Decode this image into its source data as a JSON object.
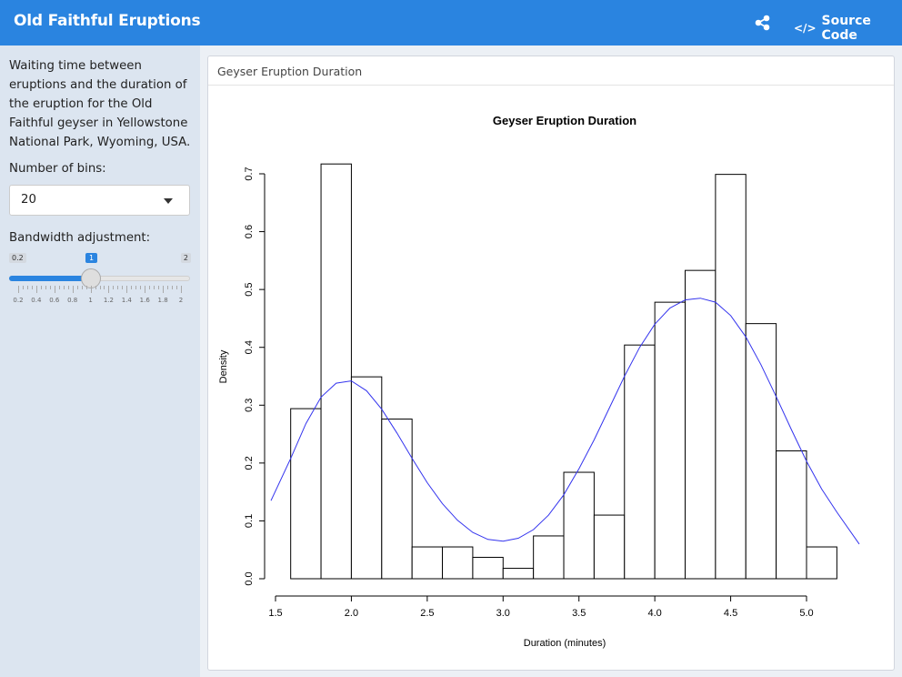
{
  "header": {
    "title": "Old Faithful Eruptions",
    "source_label": "Source Code",
    "code_icon_text": "</>",
    "share_icon": "share-icon",
    "brand_color": "#2a84e0"
  },
  "sidebar": {
    "description": "Waiting time between eruptions and the duration of the eruption for the Old Faithful geyser in Yellowstone National Park, Wyoming, USA.",
    "bins_label": "Number of bins:",
    "bins_value": "20",
    "bandwidth_label": "Bandwidth adjustment:",
    "slider": {
      "min_label": "0.2",
      "max_label": "2",
      "value_label": "1",
      "min": 0.2,
      "max": 2,
      "value": 1,
      "tick_labels": [
        "0.2",
        "0.4",
        "0.6",
        "0.8",
        "1",
        "1.2",
        "1.4",
        "1.6",
        "1.8",
        "2"
      ]
    }
  },
  "main": {
    "box_title": "Geyser Eruption Duration"
  },
  "chart_data": {
    "type": "histogram",
    "title": "Geyser Eruption Duration",
    "xlabel": "Duration (minutes)",
    "ylabel": "Density",
    "xlim": [
      1.5,
      5.3
    ],
    "ylim": [
      0,
      0.7
    ],
    "x_ticks": [
      "1.5",
      "2.0",
      "2.5",
      "3.0",
      "3.5",
      "4.0",
      "4.5",
      "5.0"
    ],
    "y_ticks": [
      "0.0",
      "0.1",
      "0.2",
      "0.3",
      "0.4",
      "0.5",
      "0.6",
      "0.7"
    ],
    "bins": [
      {
        "x0": 1.6,
        "x1": 1.8,
        "density": 0.294
      },
      {
        "x0": 1.8,
        "x1": 2.0,
        "density": 0.717
      },
      {
        "x0": 2.0,
        "x1": 2.2,
        "density": 0.349
      },
      {
        "x0": 2.2,
        "x1": 2.4,
        "density": 0.276
      },
      {
        "x0": 2.4,
        "x1": 2.6,
        "density": 0.055
      },
      {
        "x0": 2.6,
        "x1": 2.8,
        "density": 0.055
      },
      {
        "x0": 2.8,
        "x1": 3.0,
        "density": 0.037
      },
      {
        "x0": 3.0,
        "x1": 3.2,
        "density": 0.018
      },
      {
        "x0": 3.2,
        "x1": 3.4,
        "density": 0.074
      },
      {
        "x0": 3.4,
        "x1": 3.6,
        "density": 0.184
      },
      {
        "x0": 3.6,
        "x1": 3.8,
        "density": 0.11
      },
      {
        "x0": 3.8,
        "x1": 4.0,
        "density": 0.404
      },
      {
        "x0": 4.0,
        "x1": 4.2,
        "density": 0.478
      },
      {
        "x0": 4.2,
        "x1": 4.4,
        "density": 0.533
      },
      {
        "x0": 4.4,
        "x1": 4.6,
        "density": 0.699
      },
      {
        "x0": 4.6,
        "x1": 4.8,
        "density": 0.441
      },
      {
        "x0": 4.8,
        "x1": 5.0,
        "density": 0.221
      },
      {
        "x0": 5.0,
        "x1": 5.2,
        "density": 0.055
      }
    ],
    "density_curve": {
      "color": "#3333ee",
      "x": [
        1.47,
        1.6,
        1.7,
        1.8,
        1.9,
        2.0,
        2.1,
        2.2,
        2.3,
        2.4,
        2.5,
        2.6,
        2.7,
        2.8,
        2.9,
        3.0,
        3.1,
        3.2,
        3.3,
        3.4,
        3.5,
        3.6,
        3.7,
        3.8,
        3.9,
        4.0,
        4.1,
        4.2,
        4.3,
        4.4,
        4.5,
        4.6,
        4.7,
        4.8,
        4.9,
        5.0,
        5.1,
        5.2,
        5.35
      ],
      "y": [
        0.135,
        0.208,
        0.268,
        0.314,
        0.338,
        0.342,
        0.325,
        0.293,
        0.252,
        0.208,
        0.166,
        0.13,
        0.101,
        0.08,
        0.068,
        0.065,
        0.07,
        0.085,
        0.11,
        0.145,
        0.19,
        0.24,
        0.295,
        0.35,
        0.4,
        0.44,
        0.468,
        0.482,
        0.485,
        0.478,
        0.455,
        0.418,
        0.37,
        0.315,
        0.258,
        0.203,
        0.155,
        0.115,
        0.06
      ]
    }
  }
}
